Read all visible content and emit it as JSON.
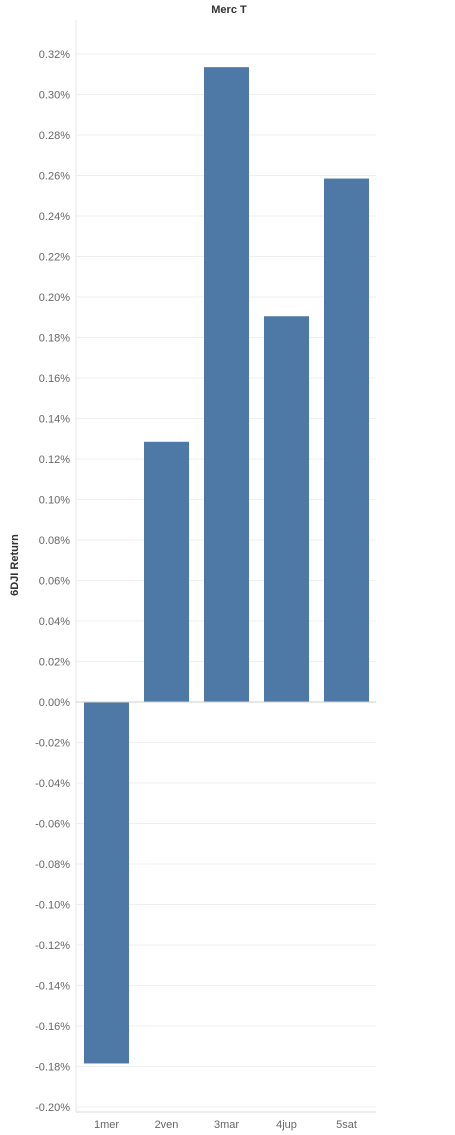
{
  "chart_data": {
    "type": "bar",
    "title": "Merc T",
    "xlabel": "",
    "ylabel": "6DJI Return",
    "categories": [
      "1mer",
      "2ven",
      "3mar",
      "4jup",
      "5sat"
    ],
    "values": [
      -0.1785,
      0.1285,
      0.3135,
      0.1905,
      0.2585
    ],
    "ylim": [
      -0.205,
      0.335
    ],
    "yticks": [
      0.32,
      0.3,
      0.28,
      0.26,
      0.24,
      0.22,
      0.2,
      0.18,
      0.16,
      0.14,
      0.12,
      0.1,
      0.08,
      0.06,
      0.04,
      0.02,
      0.0,
      -0.02,
      -0.04,
      -0.06,
      -0.08,
      -0.1,
      -0.12,
      -0.14,
      -0.16,
      -0.18,
      -0.2
    ],
    "ytick_labels": [
      "0.32%",
      "0.30%",
      "0.28%",
      "0.26%",
      "0.24%",
      "0.22%",
      "0.20%",
      "0.18%",
      "0.16%",
      "0.14%",
      "0.12%",
      "0.10%",
      "0.08%",
      "0.06%",
      "0.04%",
      "0.02%",
      "0.00%",
      "-0.02%",
      "-0.04%",
      "-0.06%",
      "-0.08%",
      "-0.10%",
      "-0.12%",
      "-0.14%",
      "-0.16%",
      "-0.18%",
      "-0.20%"
    ],
    "bar_color": "#4e79a7",
    "grid": true,
    "legend": "none"
  }
}
